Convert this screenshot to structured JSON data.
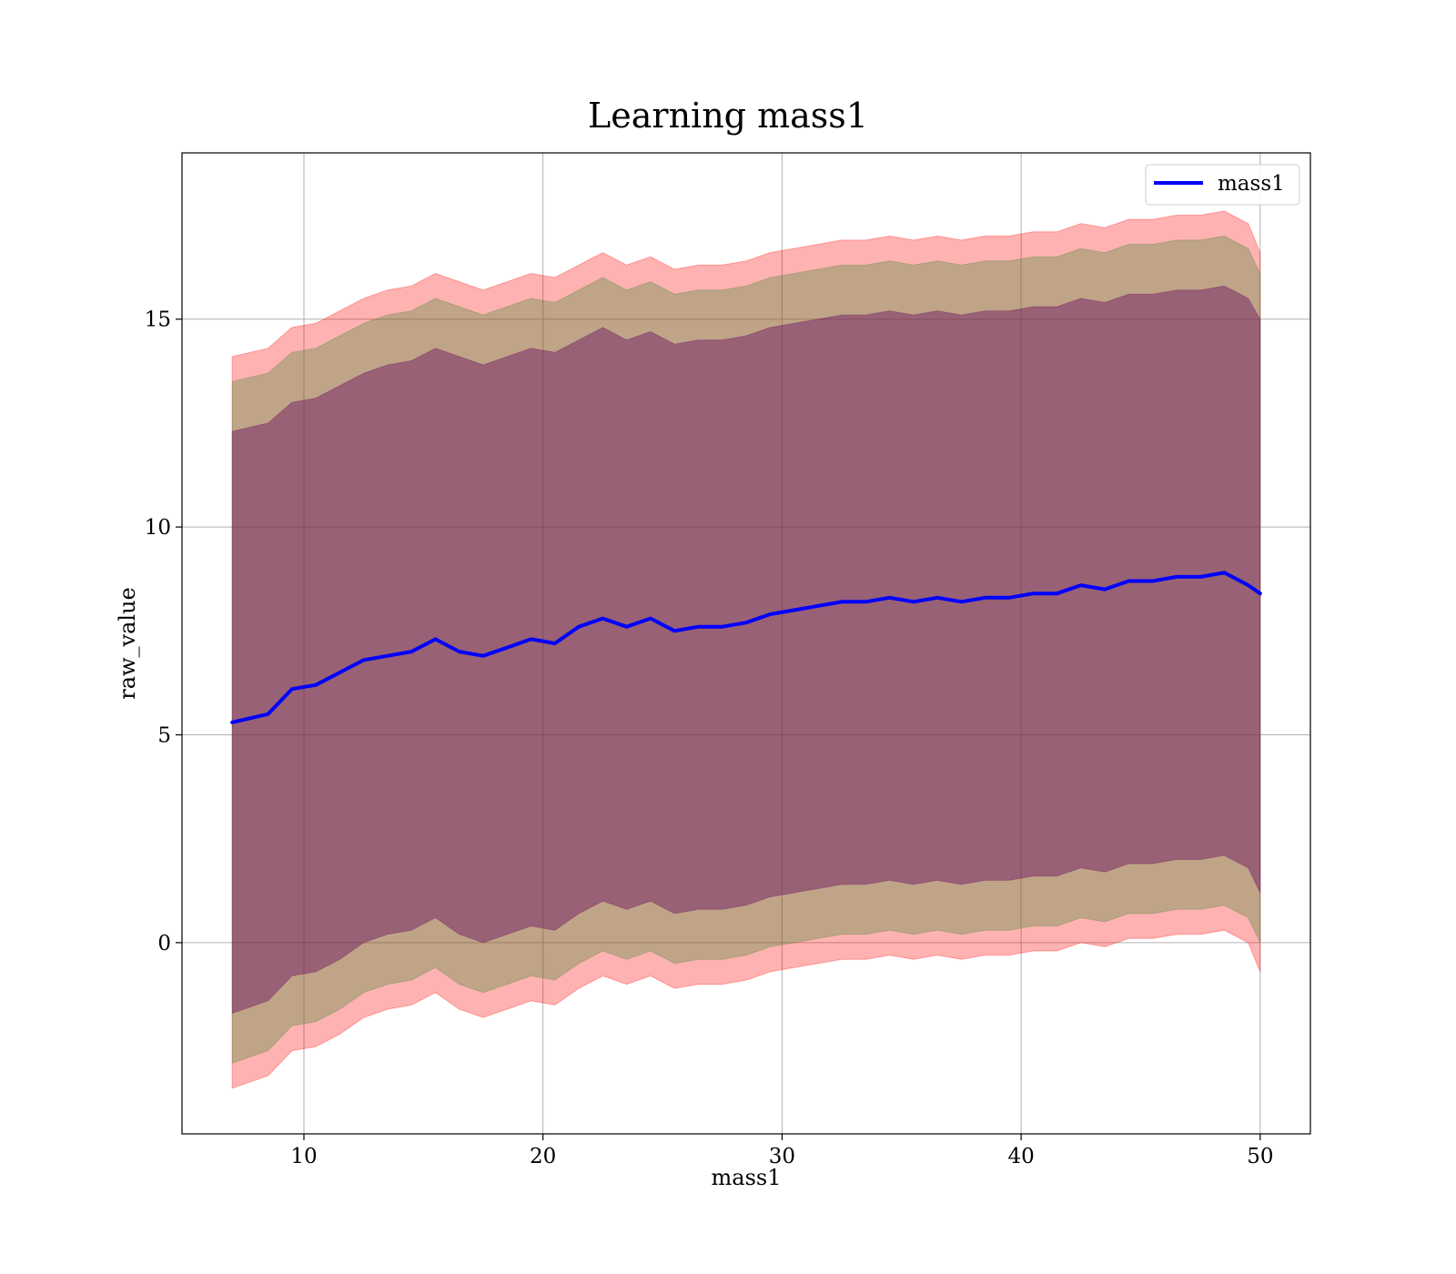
{
  "chart_data": {
    "type": "area",
    "title": "Learning mass1",
    "xlabel": "mass1",
    "ylabel": "raw_value",
    "xlim": [
      4.9,
      52.1
    ],
    "ylim": [
      -4.6,
      19.0
    ],
    "x_ticks": [
      10,
      20,
      30,
      40,
      50
    ],
    "y_ticks": [
      0,
      5,
      10,
      15
    ],
    "x_tick_labels": [
      "10",
      "20",
      "30",
      "40",
      "50"
    ],
    "y_tick_labels": [
      "0",
      "5",
      "10",
      "15"
    ],
    "grid": true,
    "legend_position": "upper right",
    "x": [
      7.0,
      8.5,
      9.5,
      10.5,
      11.5,
      12.5,
      13.5,
      14.5,
      15.5,
      16.5,
      17.5,
      18.5,
      19.5,
      20.5,
      21.5,
      22.5,
      23.5,
      24.5,
      25.5,
      26.5,
      27.5,
      28.5,
      29.5,
      30.5,
      31.5,
      32.5,
      33.5,
      34.5,
      35.5,
      36.5,
      37.5,
      38.5,
      39.5,
      40.5,
      41.5,
      42.5,
      43.5,
      44.5,
      45.5,
      46.5,
      47.5,
      48.5,
      49.5,
      50.0
    ],
    "series": [
      {
        "name": "mass1",
        "color": "#0000ff",
        "values": [
          5.3,
          5.5,
          6.1,
          6.2,
          6.5,
          6.8,
          6.9,
          7.0,
          7.3,
          7.0,
          6.9,
          7.1,
          7.3,
          7.2,
          7.6,
          7.8,
          7.6,
          7.8,
          7.5,
          7.6,
          7.6,
          7.7,
          7.9,
          8.0,
          8.1,
          8.2,
          8.2,
          8.3,
          8.2,
          8.3,
          8.2,
          8.3,
          8.3,
          8.4,
          8.4,
          8.6,
          8.5,
          8.7,
          8.7,
          8.8,
          8.8,
          8.9,
          8.6,
          8.4
        ]
      }
    ],
    "bands": [
      {
        "color": "#ff0000",
        "opacity": 0.3,
        "lower": [
          -3.5,
          -3.2,
          -2.6,
          -2.5,
          -2.2,
          -1.8,
          -1.6,
          -1.5,
          -1.2,
          -1.6,
          -1.8,
          -1.6,
          -1.4,
          -1.5,
          -1.1,
          -0.8,
          -1.0,
          -0.8,
          -1.1,
          -1.0,
          -1.0,
          -0.9,
          -0.7,
          -0.6,
          -0.5,
          -0.4,
          -0.4,
          -0.3,
          -0.4,
          -0.3,
          -0.4,
          -0.3,
          -0.3,
          -0.2,
          -0.2,
          0.0,
          -0.1,
          0.1,
          0.1,
          0.2,
          0.2,
          0.3,
          0.0,
          -0.7
        ],
        "upper": [
          14.1,
          14.3,
          14.8,
          14.9,
          15.2,
          15.5,
          15.7,
          15.8,
          16.1,
          15.9,
          15.7,
          15.9,
          16.1,
          16.0,
          16.3,
          16.6,
          16.3,
          16.5,
          16.2,
          16.3,
          16.3,
          16.4,
          16.6,
          16.7,
          16.8,
          16.9,
          16.9,
          17.0,
          16.9,
          17.0,
          16.9,
          17.0,
          17.0,
          17.1,
          17.1,
          17.3,
          17.2,
          17.4,
          17.4,
          17.5,
          17.5,
          17.6,
          17.3,
          16.6
        ]
      },
      {
        "color": "#4a8a3a",
        "opacity": 0.35,
        "lower": [
          -2.9,
          -2.6,
          -2.0,
          -1.9,
          -1.6,
          -1.2,
          -1.0,
          -0.9,
          -0.6,
          -1.0,
          -1.2,
          -1.0,
          -0.8,
          -0.9,
          -0.5,
          -0.2,
          -0.4,
          -0.2,
          -0.5,
          -0.4,
          -0.4,
          -0.3,
          -0.1,
          0.0,
          0.1,
          0.2,
          0.2,
          0.3,
          0.2,
          0.3,
          0.2,
          0.3,
          0.3,
          0.4,
          0.4,
          0.6,
          0.5,
          0.7,
          0.7,
          0.8,
          0.8,
          0.9,
          0.6,
          0.0
        ],
        "upper": [
          13.5,
          13.7,
          14.2,
          14.3,
          14.6,
          14.9,
          15.1,
          15.2,
          15.5,
          15.3,
          15.1,
          15.3,
          15.5,
          15.4,
          15.7,
          16.0,
          15.7,
          15.9,
          15.6,
          15.7,
          15.7,
          15.8,
          16.0,
          16.1,
          16.2,
          16.3,
          16.3,
          16.4,
          16.3,
          16.4,
          16.3,
          16.4,
          16.4,
          16.5,
          16.5,
          16.7,
          16.6,
          16.8,
          16.8,
          16.9,
          16.9,
          17.0,
          16.7,
          16.1
        ]
      },
      {
        "color": "#6a1060",
        "opacity": 0.45,
        "lower": [
          -1.7,
          -1.4,
          -0.8,
          -0.7,
          -0.4,
          0.0,
          0.2,
          0.3,
          0.6,
          0.2,
          0.0,
          0.2,
          0.4,
          0.3,
          0.7,
          1.0,
          0.8,
          1.0,
          0.7,
          0.8,
          0.8,
          0.9,
          1.1,
          1.2,
          1.3,
          1.4,
          1.4,
          1.5,
          1.4,
          1.5,
          1.4,
          1.5,
          1.5,
          1.6,
          1.6,
          1.8,
          1.7,
          1.9,
          1.9,
          2.0,
          2.0,
          2.1,
          1.8,
          1.2
        ],
        "upper": [
          12.3,
          12.5,
          13.0,
          13.1,
          13.4,
          13.7,
          13.9,
          14.0,
          14.3,
          14.1,
          13.9,
          14.1,
          14.3,
          14.2,
          14.5,
          14.8,
          14.5,
          14.7,
          14.4,
          14.5,
          14.5,
          14.6,
          14.8,
          14.9,
          15.0,
          15.1,
          15.1,
          15.2,
          15.1,
          15.2,
          15.1,
          15.2,
          15.2,
          15.3,
          15.3,
          15.5,
          15.4,
          15.6,
          15.6,
          15.7,
          15.7,
          15.8,
          15.5,
          15.0
        ]
      }
    ]
  }
}
